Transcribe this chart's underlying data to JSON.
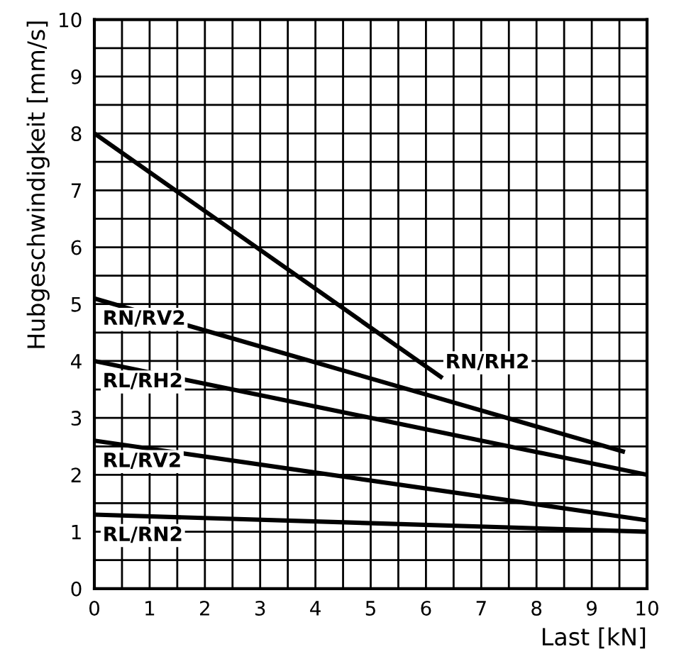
{
  "chart_data": {
    "type": "line",
    "xlabel": "Last [kN]",
    "ylabel": "Hubgeschwindigkeit [mm/s]",
    "xlim": [
      0,
      10
    ],
    "ylim": [
      0,
      10
    ],
    "xticks": [
      0,
      {
        "value": 0.5,
        "label": null
      },
      1,
      {
        "value": 1.5,
        "label": null
      },
      2,
      {
        "value": 2.5,
        "label": null
      },
      3,
      {
        "value": 3.5,
        "label": null
      },
      4,
      {
        "value": 4.5,
        "label": null
      },
      5,
      {
        "value": 5.5,
        "label": null
      },
      6,
      {
        "value": 6.5,
        "label": null
      },
      7,
      {
        "value": 7.5,
        "label": null
      },
      8,
      {
        "value": 8.5,
        "label": null
      },
      9,
      {
        "value": 9.5,
        "label": null
      },
      10
    ],
    "yticks": [
      0,
      {
        "value": 0.5,
        "label": null
      },
      1,
      {
        "value": 1.5,
        "label": null
      },
      2,
      {
        "value": 2.5,
        "label": null
      },
      3,
      {
        "value": 3.5,
        "label": null
      },
      4,
      {
        "value": 4.5,
        "label": null
      },
      5,
      {
        "value": 5.5,
        "label": null
      },
      6,
      {
        "value": 6.5,
        "label": null
      },
      7,
      {
        "value": 7.5,
        "label": null
      },
      8,
      {
        "value": 8.5,
        "label": null
      },
      9,
      {
        "value": 9.5,
        "label": null
      },
      10
    ],
    "grid": true,
    "marker": "none",
    "line_style": "solid",
    "series": [
      {
        "name": "RN/RH2",
        "color": "#000000",
        "x": [
          0,
          6.3
        ],
        "values": [
          8.0,
          3.7
        ]
      },
      {
        "name": "RN/RV2",
        "color": "#000000",
        "x": [
          0,
          9.6
        ],
        "values": [
          5.1,
          2.4
        ]
      },
      {
        "name": "RL/RH2",
        "color": "#000000",
        "x": [
          0,
          10
        ],
        "values": [
          4.0,
          2.0
        ]
      },
      {
        "name": "RL/RV2",
        "color": "#000000",
        "x": [
          0,
          10
        ],
        "values": [
          2.6,
          1.2
        ]
      },
      {
        "name": "RL/RN2",
        "color": "#000000",
        "x": [
          0,
          10
        ],
        "values": [
          1.3,
          1.0
        ]
      }
    ]
  }
}
